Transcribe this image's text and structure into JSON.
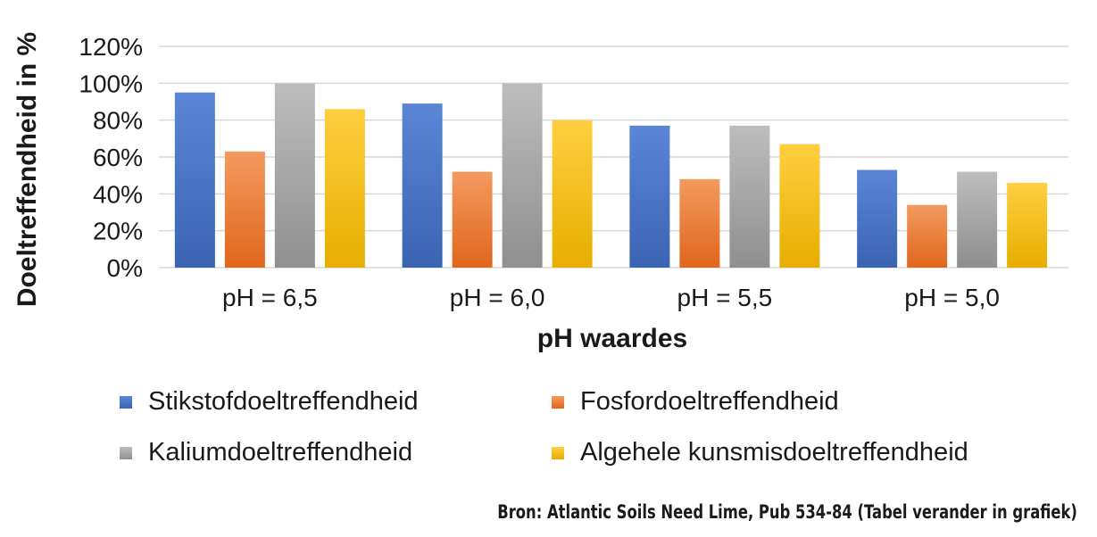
{
  "chart_data": {
    "type": "bar",
    "title": "",
    "xlabel": "pH waardes",
    "ylabel": "Doeltreffendheid in %",
    "categories": [
      "pH = 6,5",
      "pH = 6,0",
      "pH = 5,5",
      "pH = 5,0"
    ],
    "series": [
      {
        "name": "Stikstofdoeltreffendheid",
        "values": [
          95,
          89,
          77,
          53
        ],
        "color": "#4472c4"
      },
      {
        "name": "Fosfordoeltreffendheid",
        "values": [
          63,
          52,
          48,
          34
        ],
        "color": "#ed7d31"
      },
      {
        "name": "Kaliumdoeltreffendheid",
        "values": [
          100,
          100,
          77,
          52
        ],
        "color": "#a5a5a5"
      },
      {
        "name": "Algehele kunsmisdoeltreffendheid",
        "values": [
          86,
          80,
          67,
          46
        ],
        "color": "#ffc000"
      }
    ],
    "ylim": [
      0,
      120
    ],
    "yticks": [
      "0%",
      "20%",
      "40%",
      "60%",
      "80%",
      "100%",
      "120%"
    ],
    "grid": true,
    "legend_position": "bottom"
  },
  "source_note": "Bron: Atlantic Soils Need Lime, Pub 534-84 (Tabel verander in grafiek)"
}
